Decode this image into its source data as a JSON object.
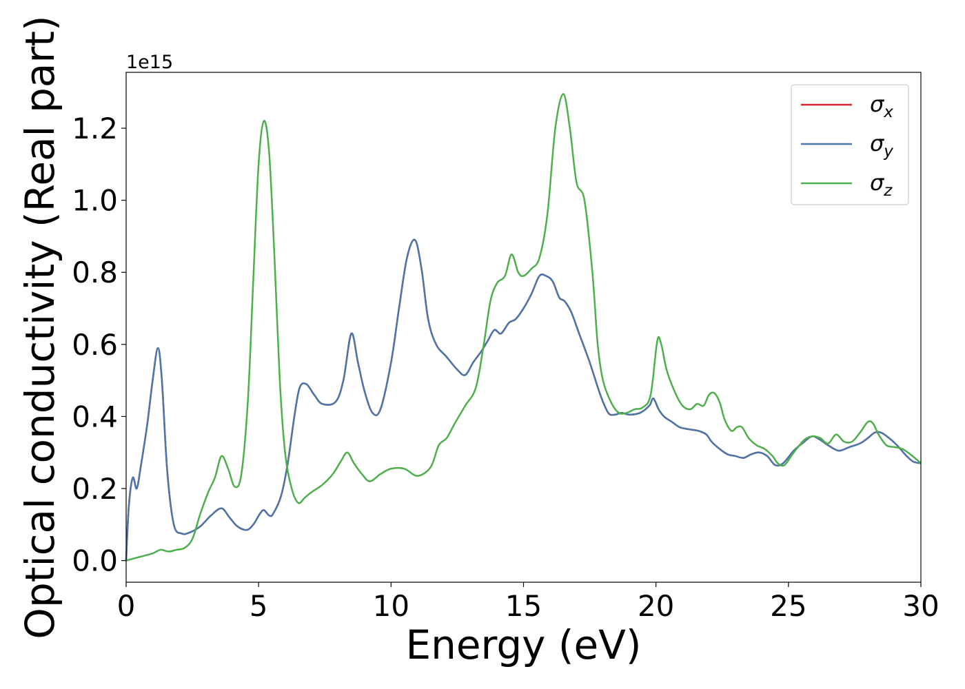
{
  "chart_data": {
    "type": "line",
    "title": "",
    "xlabel": "Energy (eV)",
    "ylabel": "Optical conductivity (Real part)",
    "offset_text": "1e15",
    "xlim": [
      0,
      30
    ],
    "ylim": [
      -0.06,
      1.355
    ],
    "x_ticks": [
      0,
      5,
      10,
      15,
      20,
      25,
      30
    ],
    "x_tick_labels": [
      "0",
      "5",
      "10",
      "15",
      "20",
      "25",
      "30"
    ],
    "y_ticks": [
      0.0,
      0.2,
      0.4,
      0.6,
      0.8,
      1.0,
      1.2
    ],
    "y_tick_labels": [
      "0.0",
      "0.2",
      "0.4",
      "0.6",
      "0.8",
      "1.0",
      "1.2"
    ],
    "grid": false,
    "legend_position": "upper right",
    "series": [
      {
        "name": "σx",
        "name_base": "σ",
        "name_sub": "x",
        "color": "#d62728",
        "x": [
          0,
          0.1,
          0.25,
          0.4,
          0.55,
          0.8,
          1.0,
          1.2,
          1.35,
          1.55,
          1.8,
          2.1,
          2.4,
          2.8,
          3.2,
          3.6,
          3.9,
          4.2,
          4.55,
          4.8,
          5.05,
          5.2,
          5.4,
          5.55,
          5.85,
          6.1,
          6.35,
          6.55,
          6.8,
          7.1,
          7.4,
          7.9,
          8.2,
          8.5,
          8.75,
          9.0,
          9.3,
          9.6,
          10.0,
          10.3,
          10.6,
          10.9,
          11.15,
          11.4,
          11.7,
          12.1,
          12.5,
          12.8,
          13.1,
          13.4,
          13.65,
          13.9,
          14.15,
          14.45,
          14.7,
          15.0,
          15.3,
          15.6,
          15.85,
          16.1,
          16.35,
          16.55,
          16.8,
          17.1,
          17.5,
          17.9,
          18.2,
          18.45,
          18.7,
          19.0,
          19.4,
          19.75,
          19.9,
          20.1,
          20.3,
          20.6,
          20.9,
          21.2,
          21.6,
          21.9,
          22.1,
          22.4,
          22.7,
          23.0,
          23.3,
          23.6,
          23.9,
          24.2,
          24.5,
          24.8,
          25.2,
          25.6,
          25.9,
          26.2,
          26.5,
          26.9,
          27.3,
          27.7,
          28.0,
          28.25,
          28.5,
          28.8,
          29.1,
          29.4,
          29.7,
          30.0
        ],
        "y": [
          0.0,
          0.15,
          0.23,
          0.2,
          0.26,
          0.38,
          0.5,
          0.59,
          0.5,
          0.25,
          0.1,
          0.075,
          0.078,
          0.095,
          0.125,
          0.145,
          0.12,
          0.095,
          0.085,
          0.1,
          0.13,
          0.14,
          0.125,
          0.13,
          0.18,
          0.27,
          0.4,
          0.48,
          0.49,
          0.46,
          0.435,
          0.44,
          0.5,
          0.63,
          0.55,
          0.47,
          0.41,
          0.42,
          0.55,
          0.7,
          0.84,
          0.89,
          0.81,
          0.67,
          0.6,
          0.565,
          0.53,
          0.515,
          0.55,
          0.58,
          0.61,
          0.64,
          0.63,
          0.66,
          0.67,
          0.7,
          0.74,
          0.79,
          0.79,
          0.775,
          0.73,
          0.72,
          0.69,
          0.63,
          0.55,
          0.46,
          0.41,
          0.405,
          0.41,
          0.405,
          0.41,
          0.43,
          0.45,
          0.42,
          0.4,
          0.385,
          0.37,
          0.365,
          0.36,
          0.35,
          0.33,
          0.31,
          0.295,
          0.29,
          0.285,
          0.295,
          0.3,
          0.29,
          0.265,
          0.27,
          0.305,
          0.33,
          0.345,
          0.335,
          0.32,
          0.305,
          0.315,
          0.325,
          0.34,
          0.355,
          0.355,
          0.34,
          0.32,
          0.295,
          0.275,
          0.27
        ]
      },
      {
        "name": "σy",
        "name_base": "σ",
        "name_sub": "y",
        "color": "#4a77ab",
        "x": [
          0,
          0.1,
          0.25,
          0.4,
          0.55,
          0.8,
          1.0,
          1.2,
          1.35,
          1.55,
          1.8,
          2.1,
          2.4,
          2.8,
          3.2,
          3.6,
          3.9,
          4.2,
          4.55,
          4.8,
          5.05,
          5.2,
          5.4,
          5.55,
          5.85,
          6.1,
          6.35,
          6.55,
          6.8,
          7.1,
          7.4,
          7.9,
          8.2,
          8.5,
          8.75,
          9.0,
          9.3,
          9.6,
          10.0,
          10.3,
          10.6,
          10.9,
          11.15,
          11.4,
          11.7,
          12.1,
          12.5,
          12.8,
          13.1,
          13.4,
          13.65,
          13.9,
          14.15,
          14.45,
          14.7,
          15.0,
          15.3,
          15.6,
          15.85,
          16.1,
          16.35,
          16.55,
          16.8,
          17.1,
          17.5,
          17.9,
          18.2,
          18.45,
          18.7,
          19.0,
          19.4,
          19.75,
          19.9,
          20.1,
          20.3,
          20.6,
          20.9,
          21.2,
          21.6,
          21.9,
          22.1,
          22.4,
          22.7,
          23.0,
          23.3,
          23.6,
          23.9,
          24.2,
          24.5,
          24.8,
          25.2,
          25.6,
          25.9,
          26.2,
          26.5,
          26.9,
          27.3,
          27.7,
          28.0,
          28.25,
          28.5,
          28.8,
          29.1,
          29.4,
          29.7,
          30.0
        ],
        "y": [
          0.0,
          0.15,
          0.23,
          0.2,
          0.26,
          0.38,
          0.5,
          0.59,
          0.5,
          0.25,
          0.1,
          0.075,
          0.078,
          0.095,
          0.125,
          0.145,
          0.12,
          0.095,
          0.085,
          0.1,
          0.13,
          0.14,
          0.125,
          0.13,
          0.18,
          0.27,
          0.4,
          0.48,
          0.49,
          0.46,
          0.435,
          0.44,
          0.5,
          0.63,
          0.55,
          0.47,
          0.41,
          0.42,
          0.55,
          0.7,
          0.84,
          0.89,
          0.81,
          0.67,
          0.6,
          0.565,
          0.53,
          0.515,
          0.55,
          0.58,
          0.61,
          0.64,
          0.63,
          0.66,
          0.67,
          0.7,
          0.74,
          0.79,
          0.79,
          0.775,
          0.73,
          0.72,
          0.69,
          0.63,
          0.55,
          0.46,
          0.41,
          0.405,
          0.41,
          0.405,
          0.41,
          0.43,
          0.45,
          0.42,
          0.4,
          0.385,
          0.37,
          0.365,
          0.36,
          0.35,
          0.33,
          0.31,
          0.295,
          0.29,
          0.285,
          0.295,
          0.3,
          0.29,
          0.265,
          0.27,
          0.305,
          0.33,
          0.345,
          0.335,
          0.32,
          0.305,
          0.315,
          0.325,
          0.34,
          0.355,
          0.355,
          0.34,
          0.32,
          0.295,
          0.275,
          0.27
        ]
      },
      {
        "name": "σz",
        "name_base": "σ",
        "name_sub": "z",
        "color": "#4daf4a",
        "x": [
          0,
          0.5,
          1.0,
          1.3,
          1.6,
          1.9,
          2.2,
          2.5,
          2.8,
          3.1,
          3.35,
          3.6,
          3.85,
          4.1,
          4.35,
          4.6,
          4.8,
          5.0,
          5.2,
          5.4,
          5.6,
          5.8,
          6.0,
          6.25,
          6.5,
          6.75,
          7.0,
          7.4,
          7.8,
          8.1,
          8.35,
          8.6,
          8.9,
          9.2,
          9.6,
          10.0,
          10.5,
          11.0,
          11.5,
          11.8,
          12.1,
          12.4,
          12.8,
          13.2,
          13.5,
          13.75,
          14.0,
          14.3,
          14.55,
          14.8,
          15.0,
          15.3,
          15.6,
          15.9,
          16.2,
          16.5,
          16.75,
          17.0,
          17.3,
          17.6,
          17.8,
          18.0,
          18.3,
          18.6,
          18.9,
          19.2,
          19.5,
          19.8,
          20.05,
          20.2,
          20.4,
          20.7,
          21.0,
          21.3,
          21.55,
          21.8,
          22.0,
          22.2,
          22.4,
          22.6,
          22.85,
          23.05,
          23.25,
          23.5,
          23.8,
          24.1,
          24.4,
          24.6,
          24.85,
          25.2,
          25.6,
          25.9,
          26.2,
          26.5,
          26.8,
          27.1,
          27.4,
          27.7,
          28.0,
          28.2,
          28.4,
          28.7,
          29.0,
          29.3,
          29.6,
          29.85,
          30.0
        ],
        "y": [
          0.0,
          0.01,
          0.02,
          0.03,
          0.025,
          0.03,
          0.035,
          0.06,
          0.13,
          0.19,
          0.23,
          0.29,
          0.255,
          0.205,
          0.24,
          0.45,
          0.78,
          1.1,
          1.22,
          1.13,
          0.84,
          0.5,
          0.3,
          0.2,
          0.16,
          0.175,
          0.19,
          0.21,
          0.24,
          0.275,
          0.3,
          0.27,
          0.24,
          0.22,
          0.24,
          0.255,
          0.255,
          0.235,
          0.26,
          0.32,
          0.34,
          0.38,
          0.43,
          0.48,
          0.6,
          0.72,
          0.77,
          0.79,
          0.85,
          0.8,
          0.79,
          0.81,
          0.84,
          0.96,
          1.2,
          1.295,
          1.2,
          1.05,
          1.0,
          0.8,
          0.6,
          0.5,
          0.44,
          0.41,
          0.41,
          0.42,
          0.425,
          0.46,
          0.61,
          0.6,
          0.53,
          0.47,
          0.43,
          0.42,
          0.435,
          0.43,
          0.46,
          0.465,
          0.44,
          0.39,
          0.36,
          0.37,
          0.37,
          0.34,
          0.32,
          0.31,
          0.29,
          0.27,
          0.265,
          0.3,
          0.335,
          0.345,
          0.34,
          0.325,
          0.35,
          0.33,
          0.33,
          0.355,
          0.385,
          0.38,
          0.35,
          0.32,
          0.315,
          0.31,
          0.295,
          0.28,
          0.27
        ]
      }
    ]
  }
}
